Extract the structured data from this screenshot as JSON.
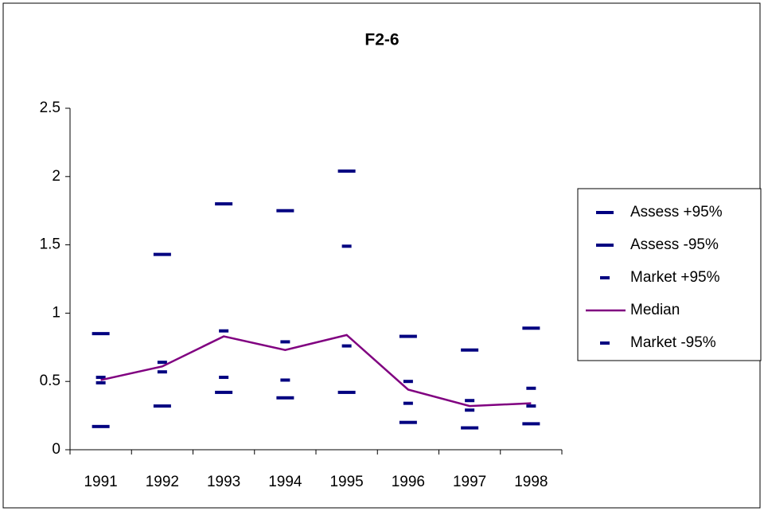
{
  "chart_data": {
    "type": "line",
    "title": "F2-6",
    "categories": [
      "1991",
      "1992",
      "1993",
      "1994",
      "1995",
      "1996",
      "1997",
      "1998"
    ],
    "series": [
      {
        "name": "Assess +95%",
        "color": "#000080",
        "marker": "long-dash",
        "values": [
          0.85,
          1.43,
          1.8,
          1.75,
          2.04,
          0.83,
          0.73,
          0.89
        ]
      },
      {
        "name": "Assess -95%",
        "color": "#000080",
        "marker": "long-dash",
        "values": [
          0.17,
          0.32,
          0.42,
          0.38,
          0.42,
          0.2,
          0.16,
          0.19
        ]
      },
      {
        "name": "Market +95%",
        "color": "#000080",
        "marker": "short-dash",
        "values": [
          0.53,
          0.64,
          0.87,
          0.79,
          1.49,
          0.5,
          0.36,
          0.45
        ]
      },
      {
        "name": "Median",
        "color": "#800080",
        "marker": "none",
        "values": [
          0.51,
          0.61,
          0.83,
          0.73,
          0.84,
          0.44,
          0.32,
          0.34
        ]
      },
      {
        "name": "Market -95%",
        "color": "#000080",
        "marker": "short-dash",
        "values": [
          0.49,
          0.57,
          0.53,
          0.51,
          0.76,
          0.34,
          0.29,
          0.32
        ]
      }
    ],
    "ylim": [
      0,
      2.5
    ],
    "yticks": [
      0,
      0.5,
      1,
      1.5,
      2,
      2.5
    ],
    "grid": false,
    "legend": "right"
  }
}
